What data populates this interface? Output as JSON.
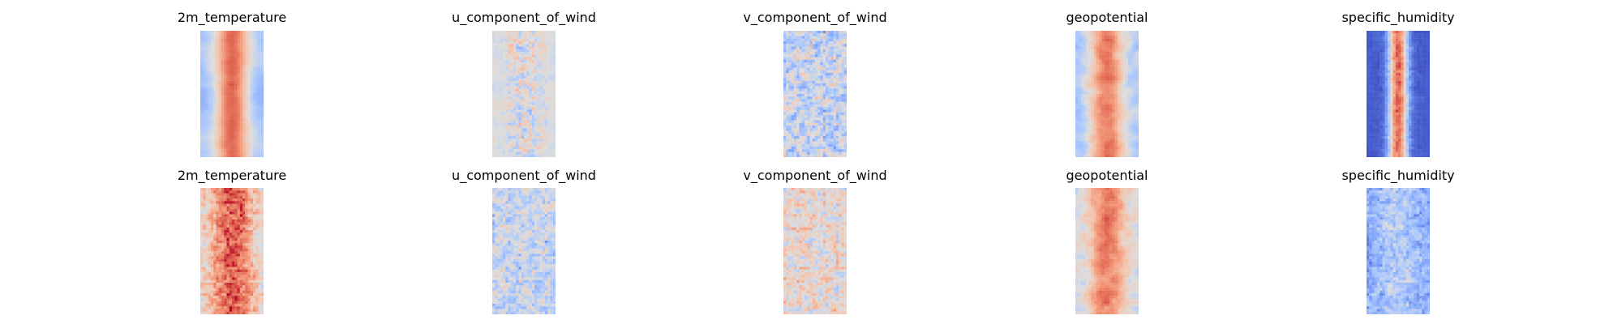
{
  "chart_data": {
    "type": "heatmap",
    "colormap": "coolwarm",
    "axes": "off",
    "layout": {
      "rows": 2,
      "cols": 5
    },
    "panels": [
      {
        "row": 0,
        "col": 0,
        "title": "2m_temperature",
        "pattern": "warm_band",
        "seed": 11
      },
      {
        "row": 0,
        "col": 1,
        "title": "u_component_of_wind",
        "pattern": "wind_streaks",
        "seed": 12
      },
      {
        "row": 0,
        "col": 2,
        "title": "v_component_of_wind",
        "pattern": "wind_patchy",
        "seed": 13
      },
      {
        "row": 0,
        "col": 3,
        "title": "geopotential",
        "pattern": "geo_band",
        "seed": 14
      },
      {
        "row": 0,
        "col": 4,
        "title": "specific_humidity",
        "pattern": "humidity",
        "seed": 15
      },
      {
        "row": 1,
        "col": 0,
        "title": "2m_temperature",
        "pattern": "warm_noisy",
        "seed": 21
      },
      {
        "row": 1,
        "col": 1,
        "title": "u_component_of_wind",
        "pattern": "wind_faint",
        "seed": 22
      },
      {
        "row": 1,
        "col": 2,
        "title": "v_component_of_wind",
        "pattern": "wind_warmish",
        "seed": 23
      },
      {
        "row": 1,
        "col": 3,
        "title": "geopotential",
        "pattern": "geo_soft",
        "seed": 24
      },
      {
        "row": 1,
        "col": 4,
        "title": "specific_humidity",
        "pattern": "humid_faint",
        "seed": 25
      }
    ]
  }
}
